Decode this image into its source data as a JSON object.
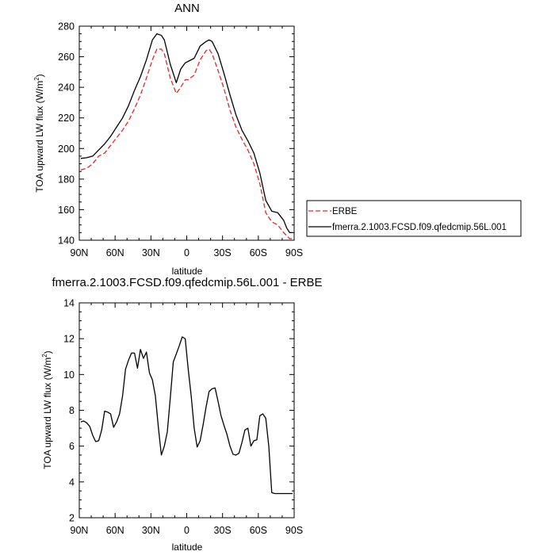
{
  "chart_data": [
    {
      "type": "line",
      "title": "ANN",
      "xlabel": "latitude",
      "ylabel_main": "TOA upward LW flux (W/m",
      "ylabel_sup": "2",
      "ylabel_close": ")",
      "xlim": [
        90,
        -90
      ],
      "ylim": [
        140,
        280
      ],
      "xticks": [
        90,
        60,
        30,
        0,
        -30,
        -60,
        -90
      ],
      "xtick_labels": [
        "90N",
        "60N",
        "30N",
        "0",
        "30S",
        "60S",
        "90S"
      ],
      "yticks": [
        140,
        160,
        180,
        200,
        220,
        240,
        260,
        280
      ],
      "ytick_labels": [
        "140",
        "160",
        "180",
        "200",
        "220",
        "240",
        "260",
        "280"
      ],
      "legend": {
        "position": "right",
        "entries": [
          "ERBE",
          "fmerra.2.1003.FCSD.f09.qfedcmip.56L.001"
        ]
      },
      "series": [
        {
          "name": "ERBE",
          "color": "#e8262a",
          "dash": true,
          "x": [
            88.7,
            83.75,
            78.75,
            73.75,
            68.75,
            63.75,
            58.75,
            53.75,
            48.75,
            43.75,
            38.75,
            33.75,
            28.75,
            25,
            21.25,
            18.75,
            13.75,
            8.75,
            5,
            1.25,
            -1.25,
            -6.25,
            -11.25,
            -16.25,
            -18.75,
            -21.25,
            -26.25,
            -31.25,
            -36.25,
            -41.25,
            -46.25,
            -51.25,
            -56.25,
            -61.25,
            -66.25,
            -71.25,
            -76.25,
            -81.25,
            -83.75,
            -86.25,
            -88.7
          ],
          "y": [
            186,
            187,
            190,
            195,
            197,
            202,
            207,
            212,
            218,
            226,
            235,
            246,
            258,
            265,
            265,
            262,
            246,
            236,
            240,
            245,
            245,
            248,
            258,
            264,
            265,
            262,
            251,
            239,
            225,
            214,
            206,
            199,
            190,
            177,
            158,
            152,
            150,
            145,
            143,
            141,
            141
          ]
        },
        {
          "name": "fmerra.2.1003.FCSD.f09.qfedcmip.56L.001",
          "color": "#000000",
          "dash": false,
          "x": [
            88.7,
            83.75,
            78.75,
            73.75,
            68.75,
            63.75,
            58.75,
            53.75,
            48.75,
            43.75,
            38.75,
            33.75,
            28.75,
            25,
            21.25,
            18.75,
            13.75,
            8.75,
            5,
            1.25,
            -1.25,
            -6.25,
            -11.25,
            -16.25,
            -18.75,
            -21.25,
            -26.25,
            -31.25,
            -36.25,
            -41.25,
            -46.25,
            -51.25,
            -56.25,
            -61.25,
            -66.25,
            -71.25,
            -76.25,
            -81.25,
            -83.75,
            -86.25,
            -88.7
          ],
          "y": [
            193.5,
            194,
            195,
            199,
            203,
            208,
            214,
            220,
            228,
            238,
            247,
            258,
            271,
            275,
            274,
            271,
            255,
            243,
            252,
            256,
            257,
            259,
            267,
            270,
            271,
            270,
            262,
            249,
            235,
            222,
            212,
            205,
            197,
            184,
            166,
            159,
            158,
            153,
            148,
            145,
            145
          ]
        }
      ]
    },
    {
      "type": "line",
      "title": "fmerra.2.1003.FCSD.f09.qfedcmip.56L.001 - ERBE",
      "xlabel": "latitude",
      "ylabel_main": "TOA upward LW flux (W/m",
      "ylabel_sup": "2",
      "ylabel_close": ")",
      "xlim": [
        90,
        -90
      ],
      "ylim": [
        2,
        14
      ],
      "xticks": [
        90,
        60,
        30,
        0,
        -30,
        -60,
        -90
      ],
      "xtick_labels": [
        "90N",
        "60N",
        "30N",
        "0",
        "30S",
        "60S",
        "90S"
      ],
      "yticks": [
        2,
        4,
        6,
        8,
        10,
        12,
        14
      ],
      "ytick_labels": [
        "2",
        "4",
        "6",
        "8",
        "10",
        "12",
        "14"
      ],
      "series": [
        {
          "color": "#000000",
          "x": [
            88.7,
            86.25,
            83.75,
            81.25,
            78.75,
            76.25,
            73.75,
            71.25,
            68.75,
            66.25,
            63.75,
            61.25,
            58.75,
            56.25,
            53.75,
            51.25,
            48.75,
            46.25,
            43.75,
            41.25,
            38.75,
            36.25,
            33.75,
            31.25,
            28.75,
            26.25,
            23.75,
            21.25,
            18.75,
            16.25,
            13.75,
            11.25,
            8.75,
            6.25,
            3.75,
            1.25,
            -1.25,
            -3.75,
            -6.25,
            -8.75,
            -11.25,
            -13.75,
            -16.25,
            -18.75,
            -21.25,
            -23.75,
            -26.25,
            -28.75,
            -31.25,
            -33.75,
            -36.25,
            -38.75,
            -41.25,
            -43.75,
            -46.25,
            -48.75,
            -51.25,
            -53.75,
            -56.25,
            -58.75,
            -61.25,
            -63.75,
            -66.25,
            -68.75,
            -71.25,
            -73.75,
            -76.25,
            -78.75,
            -81.25,
            -83.75,
            -86.25,
            -88.7
          ],
          "y": [
            7.35,
            7.4,
            7.3,
            7.1,
            6.6,
            6.25,
            6.3,
            6.9,
            7.95,
            7.9,
            7.8,
            7.05,
            7.35,
            7.8,
            8.8,
            10.3,
            10.8,
            11.2,
            11.2,
            10.35,
            11.4,
            10.9,
            11.25,
            10.1,
            9.7,
            8.8,
            7.05,
            5.5,
            6.0,
            6.8,
            8.7,
            10.7,
            11.15,
            11.6,
            12.1,
            12.0,
            10.3,
            8.8,
            7.0,
            5.95,
            6.3,
            7.2,
            8.2,
            9.05,
            9.2,
            9.25,
            8.5,
            7.7,
            7.15,
            6.65,
            6.0,
            5.55,
            5.5,
            5.6,
            6.2,
            6.9,
            7.0,
            6.0,
            6.3,
            6.35,
            7.7,
            7.8,
            7.55,
            6.0,
            3.4,
            3.35,
            3.35,
            3.35,
            3.35,
            3.35,
            3.35,
            3.35
          ]
        }
      ]
    }
  ]
}
